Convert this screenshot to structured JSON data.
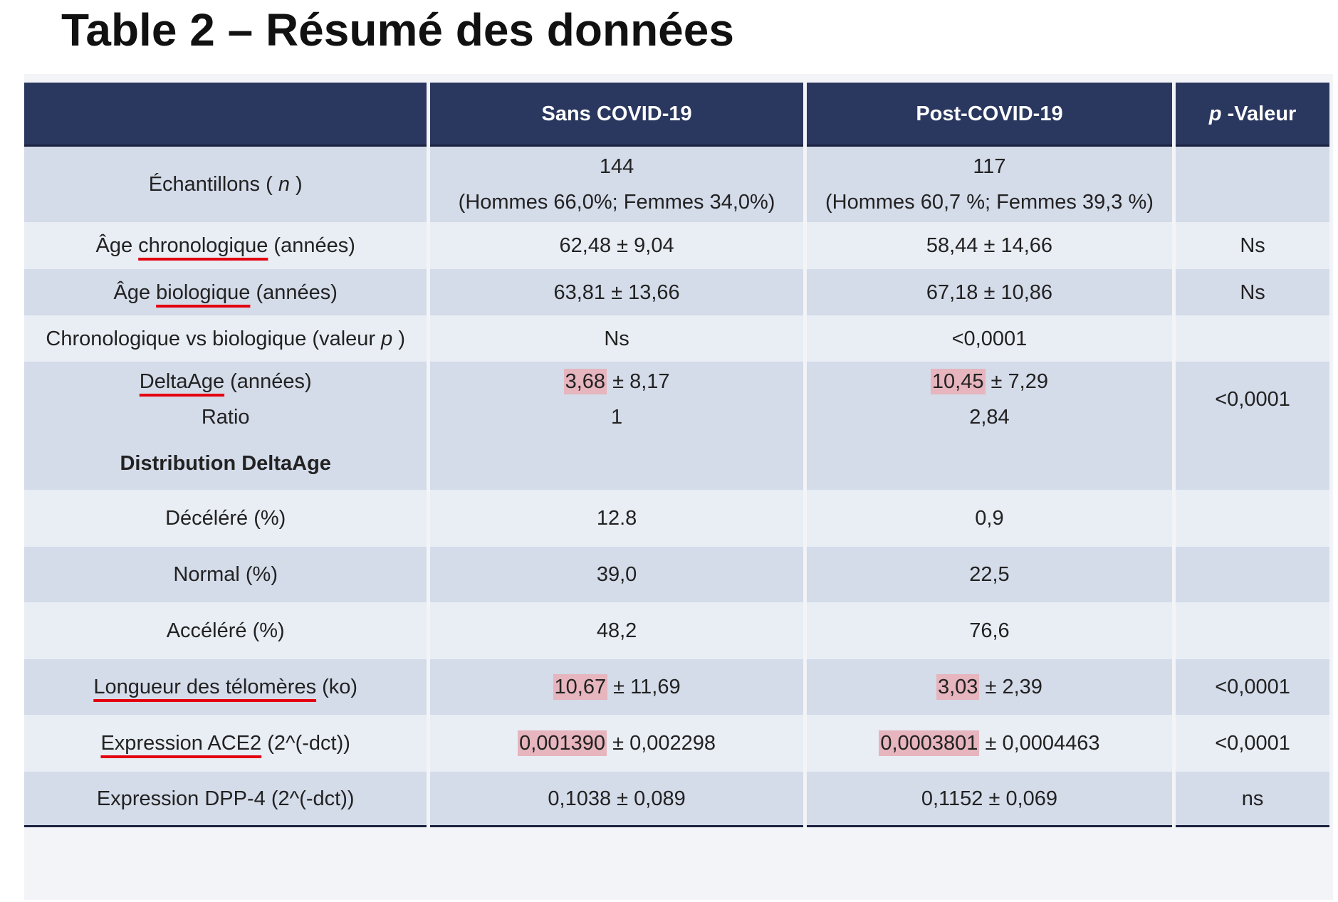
{
  "title": "Table 2 – Résumé des données",
  "table": {
    "headers": {
      "label": "",
      "col_a": "Sans COVID-19",
      "col_b": "Post-COVID-19",
      "col_p_italic": "p",
      "col_p_rest": " -Valeur"
    },
    "rows": {
      "samples": {
        "label_pre": "Échantillons ( ",
        "label_italic": "n",
        "label_post": " )",
        "a_line1": "144",
        "a_line2": "(Hommes 66,0%; Femmes 34,0%)",
        "b_line1": "117",
        "b_line2": "(Hommes 60,7 %; Femmes 39,3 %)",
        "p": ""
      },
      "chrono_age": {
        "label_pre": "Âge ",
        "label_underlined": "chronologique",
        "label_post": " (années)",
        "a": "62,48 ± 9,04",
        "b": "58,44 ± 14,66",
        "p": "Ns"
      },
      "bio_age": {
        "label_pre": "Âge ",
        "label_underlined": "biologique",
        "label_post": " (années)",
        "a": "63,81 ± 13,66",
        "b": "67,18 ± 10,86",
        "p": "Ns"
      },
      "chrono_vs_bio": {
        "label_pre": "Chronologique vs biologique (valeur ",
        "label_italic": "p",
        "label_post": " )",
        "a": "Ns",
        "b": "<0,0001",
        "p": ""
      },
      "delta_age": {
        "label_underlined": "DeltaAge",
        "label_post": " (années)",
        "label_line2": "Ratio",
        "a_highlight": "3,68",
        "a_rest": " ± 8,17",
        "a_line2": "1",
        "b_highlight": "10,45",
        "b_rest": " ± 7,29",
        "b_line2": "2,84",
        "p": "<0,0001"
      },
      "distribution_header": {
        "label": "Distribution DeltaAge",
        "a": "",
        "b": "",
        "p": ""
      },
      "decelerated": {
        "label": "Décéléré (%)",
        "a": "12.8",
        "b": "0,9",
        "p": ""
      },
      "normal": {
        "label": "Normal (%)",
        "a": "39,0",
        "b": "22,5",
        "p": ""
      },
      "accelerated": {
        "label": "Accéléré (%)",
        "a": "48,2",
        "b": "76,6",
        "p": ""
      },
      "telomere": {
        "label_underlined": "Longueur des télomères",
        "label_post": " (ko)",
        "a_highlight": "10,67",
        "a_rest": " ± 11,69",
        "b_highlight": "3,03",
        "b_rest": " ± 2,39",
        "p": "<0,0001"
      },
      "ace2": {
        "label_underlined": "Expression ACE2",
        "label_post": " (2^(-dct))",
        "a_highlight": "0,001390",
        "a_rest": " ± 0,002298",
        "b_highlight": "0,0003801",
        "b_rest": " ± 0,0004463",
        "p": "<0,0001"
      },
      "dpp4": {
        "label": "Expression DPP-4 (2^(-dct))",
        "a": "0,1038 ± 0,089",
        "b": "0,1152 ± 0,069",
        "p": "ns"
      }
    }
  },
  "colors": {
    "header_bg": "#2a375f",
    "row_dark": "#d4dbe9",
    "row_light": "#e9edf4",
    "underline_red": "#e3000f",
    "highlight_pink": "#e6b5be"
  }
}
